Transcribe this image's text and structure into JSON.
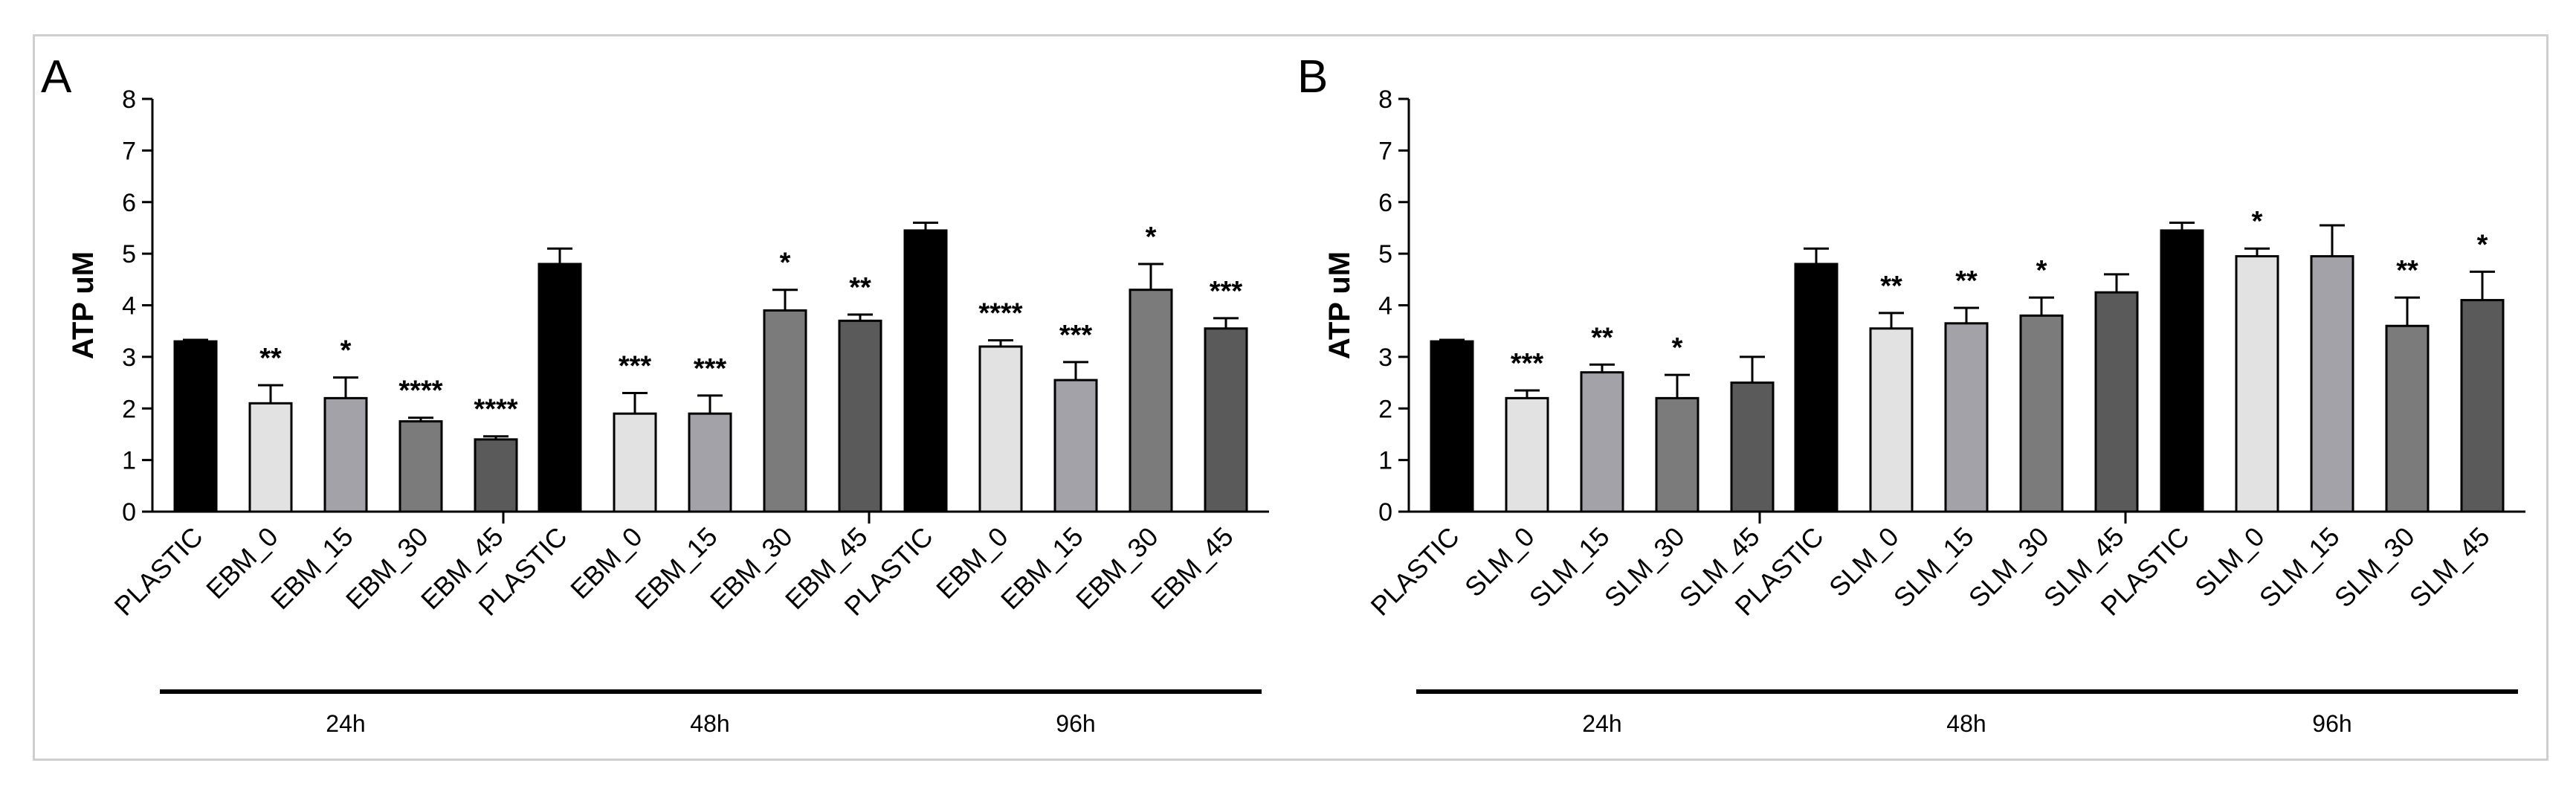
{
  "chart_data": [
    {
      "type": "bar",
      "panel": "A",
      "ylabel": "ATP uM",
      "ylim": [
        0,
        8
      ],
      "yticks": [
        0,
        1,
        2,
        3,
        4,
        5,
        6,
        7,
        8
      ],
      "grid": false,
      "groups": [
        {
          "label": "24h",
          "categories": [
            "PLASTIC",
            "EBM_0",
            "EBM_15",
            "EBM_30",
            "EBM_45"
          ],
          "values": [
            3.3,
            2.1,
            2.2,
            1.75,
            1.4
          ],
          "errors": [
            0.03,
            0.35,
            0.4,
            0.07,
            0.06
          ],
          "significance": [
            "",
            "**",
            "*",
            "****",
            "****"
          ]
        },
        {
          "label": "48h",
          "categories": [
            "PLASTIC",
            "EBM_0",
            "EBM_15",
            "EBM_30",
            "EBM_45"
          ],
          "values": [
            4.8,
            1.9,
            1.9,
            3.9,
            3.7
          ],
          "errors": [
            0.3,
            0.4,
            0.35,
            0.4,
            0.12
          ],
          "significance": [
            "",
            "***",
            "***",
            "*",
            "**"
          ]
        },
        {
          "label": "96h",
          "categories": [
            "PLASTIC",
            "EBM_0",
            "EBM_15",
            "EBM_30",
            "EBM_45"
          ],
          "values": [
            5.45,
            3.2,
            2.55,
            4.3,
            3.55
          ],
          "errors": [
            0.15,
            0.12,
            0.35,
            0.5,
            0.2
          ],
          "significance": [
            "",
            "****",
            "***",
            "*",
            "***"
          ]
        }
      ]
    },
    {
      "type": "bar",
      "panel": "B",
      "ylabel": "ATP uM",
      "ylim": [
        0,
        8
      ],
      "yticks": [
        0,
        1,
        2,
        3,
        4,
        5,
        6,
        7,
        8
      ],
      "grid": false,
      "groups": [
        {
          "label": "24h",
          "categories": [
            "PLASTIC",
            "SLM_0",
            "SLM_15",
            "SLM_30",
            "SLM_45"
          ],
          "values": [
            3.3,
            2.2,
            2.7,
            2.2,
            2.5
          ],
          "errors": [
            0.03,
            0.15,
            0.15,
            0.45,
            0.5
          ],
          "significance": [
            "",
            "***",
            "**",
            "*",
            ""
          ]
        },
        {
          "label": "48h",
          "categories": [
            "PLASTIC",
            "SLM_0",
            "SLM_15",
            "SLM_30",
            "SLM_45"
          ],
          "values": [
            4.8,
            3.55,
            3.65,
            3.8,
            4.25
          ],
          "errors": [
            0.3,
            0.3,
            0.3,
            0.35,
            0.35
          ],
          "significance": [
            "",
            "**",
            "**",
            "*",
            ""
          ]
        },
        {
          "label": "96h",
          "categories": [
            "PLASTIC",
            "SLM_0",
            "SLM_15",
            "SLM_30",
            "SLM_45"
          ],
          "values": [
            5.45,
            4.95,
            4.95,
            3.6,
            4.1
          ],
          "errors": [
            0.15,
            0.15,
            0.6,
            0.55,
            0.55
          ],
          "significance": [
            "",
            "*",
            "",
            "**",
            "*"
          ]
        }
      ]
    }
  ],
  "colors": {
    "series": [
      "#000000",
      "#e2e2e2",
      "#a2a2a8",
      "#7b7b7b",
      "#5a5a5a"
    ],
    "axis": "#000000",
    "frame": "#cfcfcf"
  }
}
